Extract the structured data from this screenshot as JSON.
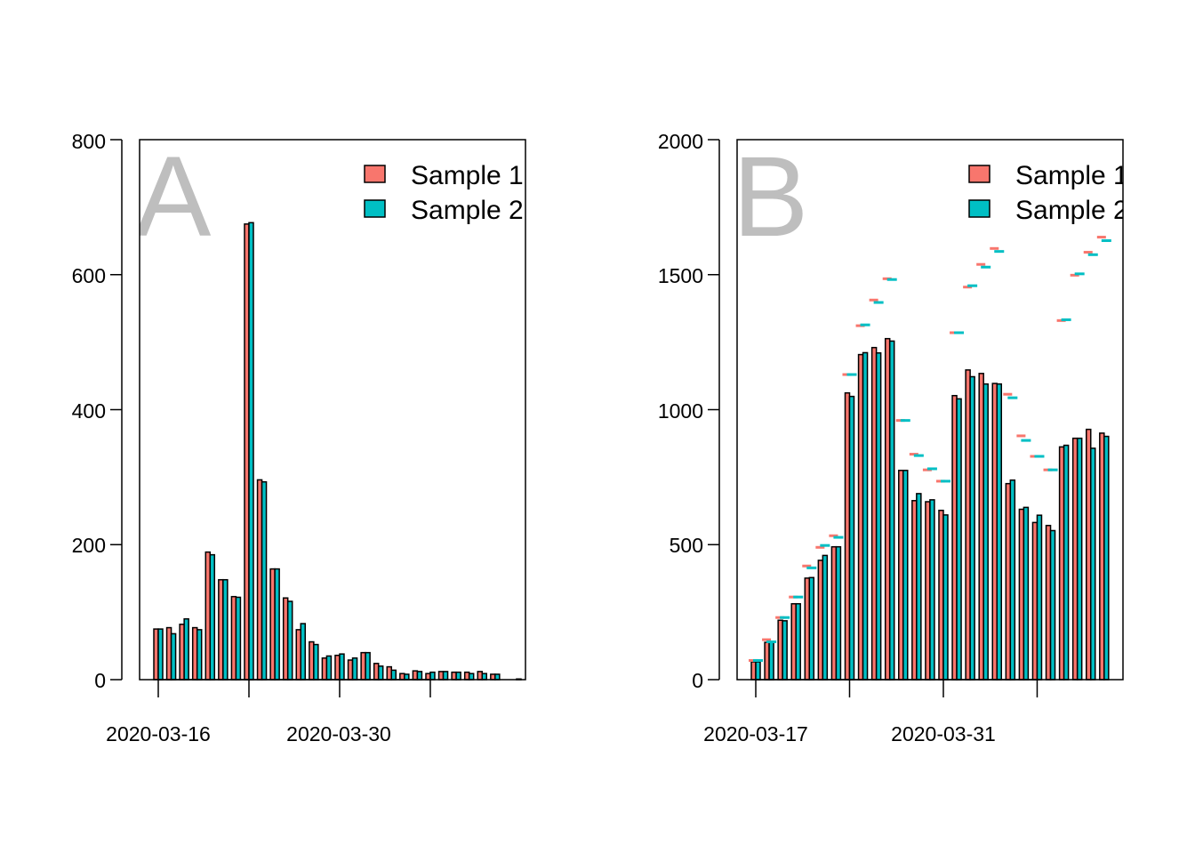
{
  "colors": {
    "sample1": "#F8766D",
    "sample2": "#00BFC4",
    "panel_letter": "#BEBEBE"
  },
  "chart_data": [
    {
      "type": "bar",
      "panel_label": "A",
      "title": "",
      "xlabel": "",
      "ylabel": "",
      "ylim": [
        0,
        800
      ],
      "yticks": [
        "0",
        "200",
        "400",
        "600",
        "800"
      ],
      "xtick_labels": [
        "2020-03-16",
        "2020-03-30"
      ],
      "x_start_date": "2020-03-16",
      "legend": [
        "Sample 1",
        "Sample 2"
      ],
      "legend_position": "top-right",
      "series": [
        {
          "name": "Sample 1",
          "values": [
            75,
            77,
            82,
            77,
            189,
            148,
            123,
            675,
            296,
            164,
            121,
            74,
            56,
            32,
            36,
            29,
            40,
            24,
            19,
            9,
            13,
            9,
            12,
            11,
            11,
            12,
            8,
            0,
            1
          ]
        },
        {
          "name": "Sample 2",
          "values": [
            75,
            68,
            90,
            74,
            185,
            148,
            122,
            677,
            293,
            164,
            116,
            83,
            52,
            35,
            38,
            32,
            40,
            20,
            14,
            8,
            12,
            11,
            12,
            11,
            9,
            9,
            8,
            0,
            0
          ]
        }
      ]
    },
    {
      "type": "bar",
      "panel_label": "B",
      "title": "",
      "xlabel": "",
      "ylabel": "",
      "ylim": [
        0,
        2000
      ],
      "yticks": [
        "0",
        "500",
        "1000",
        "1500",
        "2000"
      ],
      "xtick_labels": [
        "2020-03-17",
        "2020-03-31"
      ],
      "x_start_date": "2020-03-17",
      "legend": [
        "Sample 1",
        "Sample 2"
      ],
      "legend_position": "top-right",
      "series": [
        {
          "name": "Sample 1",
          "values": [
            66,
            138,
            220,
            281,
            376,
            442,
            492,
            1062,
            1204,
            1230,
            1263,
            775,
            663,
            659,
            627,
            1052,
            1147,
            1134,
            1097,
            726,
            631,
            582,
            571,
            862,
            894,
            927,
            913
          ],
          "marks": [
            71,
            148,
            230,
            306,
            421,
            490,
            533,
            1130,
            1311,
            1406,
            1485,
            960,
            835,
            777,
            735,
            1285,
            1454,
            1538,
            1597,
            1057,
            903,
            827,
            777,
            1330,
            1498,
            1583,
            1639
          ]
        },
        {
          "name": "Sample 2",
          "values": [
            66,
            138,
            218,
            281,
            378,
            460,
            492,
            1049,
            1211,
            1210,
            1254,
            775,
            689,
            666,
            610,
            1040,
            1122,
            1095,
            1095,
            739,
            638,
            609,
            552,
            868,
            894,
            857,
            901
          ],
          "marks": [
            71,
            140,
            230,
            306,
            414,
            497,
            527,
            1130,
            1314,
            1397,
            1482,
            960,
            830,
            781,
            735,
            1285,
            1459,
            1528,
            1586,
            1044,
            886,
            827,
            777,
            1333,
            1503,
            1574,
            1626
          ]
        }
      ]
    }
  ]
}
